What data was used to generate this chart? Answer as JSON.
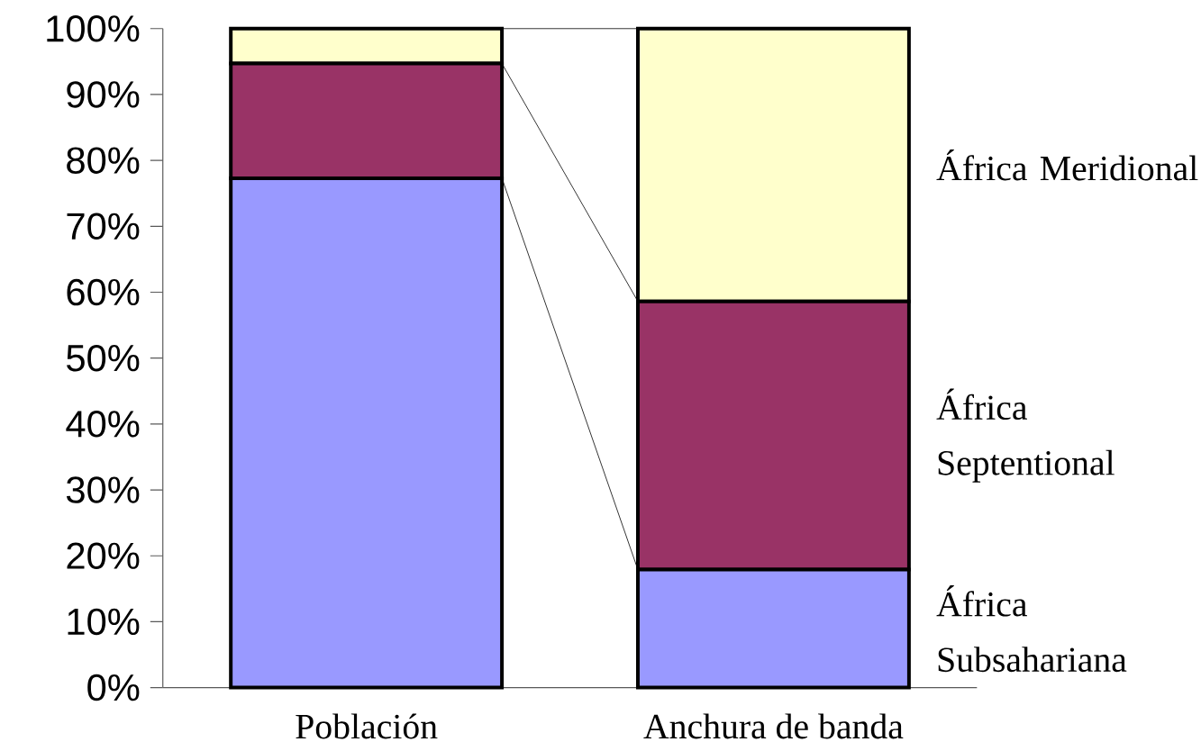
{
  "chart_data": {
    "type": "bar",
    "stacked": true,
    "categories": [
      "Población",
      "Anchura de banda"
    ],
    "series": [
      {
        "name": "África Subsahariana",
        "color": "#9999ff",
        "values": [
          77.3,
          17.9
        ]
      },
      {
        "name": "África Septentional",
        "color": "#993366",
        "values": [
          17.4,
          40.7
        ]
      },
      {
        "name": "África Meridional",
        "color": "#ffffcc",
        "values": [
          5.3,
          41.4
        ]
      }
    ],
    "ylim": [
      0,
      100
    ],
    "yticks": [
      {
        "value": 0,
        "label": "0%"
      },
      {
        "value": 10,
        "label": "10%"
      },
      {
        "value": 20,
        "label": "20%"
      },
      {
        "value": 30,
        "label": "30%"
      },
      {
        "value": 40,
        "label": "40%"
      },
      {
        "value": 50,
        "label": "50%"
      },
      {
        "value": 60,
        "label": "60%"
      },
      {
        "value": 70,
        "label": "70%"
      },
      {
        "value": 80,
        "label": "80%"
      },
      {
        "value": 90,
        "label": "90%"
      },
      {
        "value": 100,
        "label": "100%"
      }
    ]
  }
}
